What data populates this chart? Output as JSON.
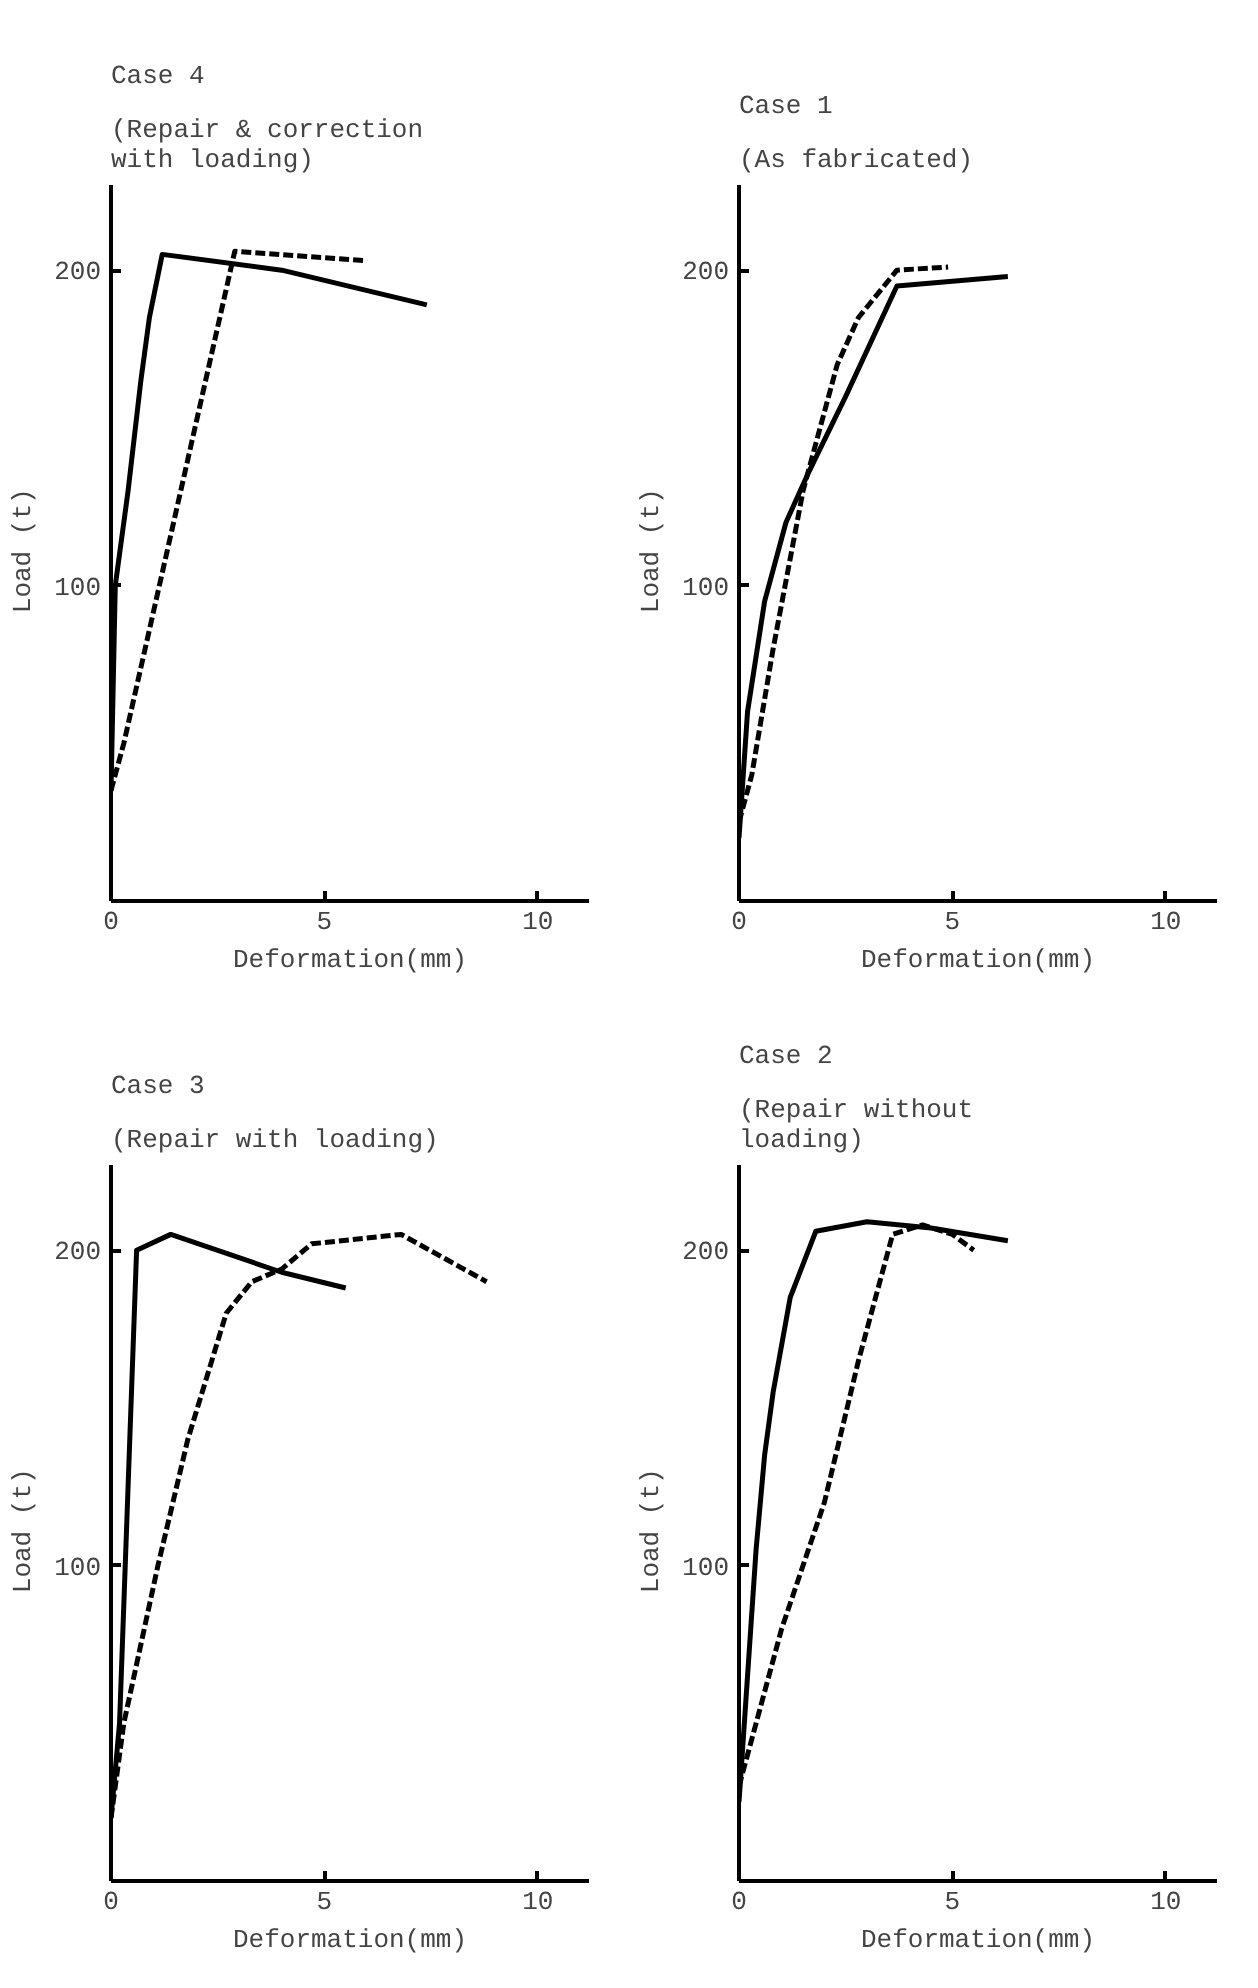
{
  "chart_data": [
    {
      "type": "line",
      "title": "Case 4",
      "subtitle": "(Repair & correction with loading)",
      "xlabel": "Deformation(mm)",
      "ylabel": "Load  (t)",
      "xlim": [
        0,
        11.2
      ],
      "ylim": [
        0,
        227
      ],
      "xticks": [
        0,
        5,
        10
      ],
      "yticks": [
        100,
        200
      ],
      "grid": false,
      "marker": "none",
      "series": [
        {
          "color": "#000000",
          "line_style": "solid",
          "x": [
            0,
            0.1,
            0.4,
            0.7,
            0.9,
            1.2,
            4,
            7.4
          ],
          "values": [
            35,
            100,
            130,
            165,
            185,
            205,
            200,
            189
          ]
        },
        {
          "color": "#000000",
          "line_style": "dashed",
          "x": [
            0,
            0.3,
            2.9,
            6
          ],
          "values": [
            35,
            50,
            206,
            203
          ]
        }
      ]
    },
    {
      "type": "line",
      "title": "Case 1",
      "subtitle": "(As fabricated)",
      "xlabel": "Deformation(mm)",
      "ylabel": "Load  (t)",
      "xlim": [
        0,
        11.2
      ],
      "ylim": [
        0,
        227
      ],
      "xticks": [
        0,
        5,
        10
      ],
      "yticks": [
        100,
        200
      ],
      "grid": false,
      "marker": "none",
      "series": [
        {
          "color": "#000000",
          "line_style": "solid",
          "x": [
            0,
            0.2,
            0.6,
            1.1,
            1.6,
            2.5,
            3.7,
            6.3
          ],
          "values": [
            20,
            60,
            95,
            120,
            135,
            160,
            195,
            198
          ]
        },
        {
          "color": "#000000",
          "line_style": "dashed",
          "x": [
            0,
            0.3,
            0.8,
            1.5,
            2.3,
            2.8,
            3.7,
            4.9
          ],
          "values": [
            25,
            40,
            80,
            130,
            170,
            185,
            200,
            201
          ]
        }
      ]
    },
    {
      "type": "line",
      "title": "Case 3",
      "subtitle": "(Repair with loading)",
      "xlabel": "Deformation(mm)",
      "ylabel": "Load  (t)",
      "xlim": [
        0,
        11.2
      ],
      "ylim": [
        0,
        227
      ],
      "xticks": [
        0,
        5,
        10
      ],
      "yticks": [
        100,
        200
      ],
      "grid": false,
      "marker": "none",
      "series": [
        {
          "color": "#000000",
          "line_style": "solid",
          "x": [
            0,
            0.2,
            0.6,
            1.4,
            4,
            5.5
          ],
          "values": [
            20,
            50,
            200,
            205,
            193,
            188
          ]
        },
        {
          "color": "#000000",
          "line_style": "dashed",
          "x": [
            0,
            0.3,
            1.1,
            1.8,
            2.7,
            3.3,
            4,
            4.7,
            6.8,
            8.8
          ],
          "values": [
            20,
            50,
            100,
            140,
            180,
            190,
            194,
            202,
            205,
            190
          ]
        }
      ]
    },
    {
      "type": "line",
      "title": "Case 2",
      "subtitle": "(Repair without loading)",
      "xlabel": "Deformation(mm)",
      "ylabel": "Load  (t)",
      "xlim": [
        0,
        11.2
      ],
      "ylim": [
        0,
        227
      ],
      "xticks": [
        0,
        5,
        10
      ],
      "yticks": [
        100,
        200
      ],
      "grid": false,
      "marker": "none",
      "series": [
        {
          "color": "#000000",
          "line_style": "solid",
          "x": [
            0,
            0.4,
            0.6,
            0.8,
            1.2,
            1.8,
            3.0,
            4.5,
            6.3
          ],
          "values": [
            25,
            105,
            135,
            155,
            185,
            206,
            209,
            207,
            203
          ]
        },
        {
          "color": "#000000",
          "line_style": "dashed",
          "x": [
            0,
            0.3,
            1,
            2,
            2.8,
            3.6,
            4.3,
            5.0,
            5.5
          ],
          "values": [
            30,
            45,
            80,
            120,
            165,
            205,
            208,
            205,
            200
          ]
        }
      ]
    }
  ]
}
